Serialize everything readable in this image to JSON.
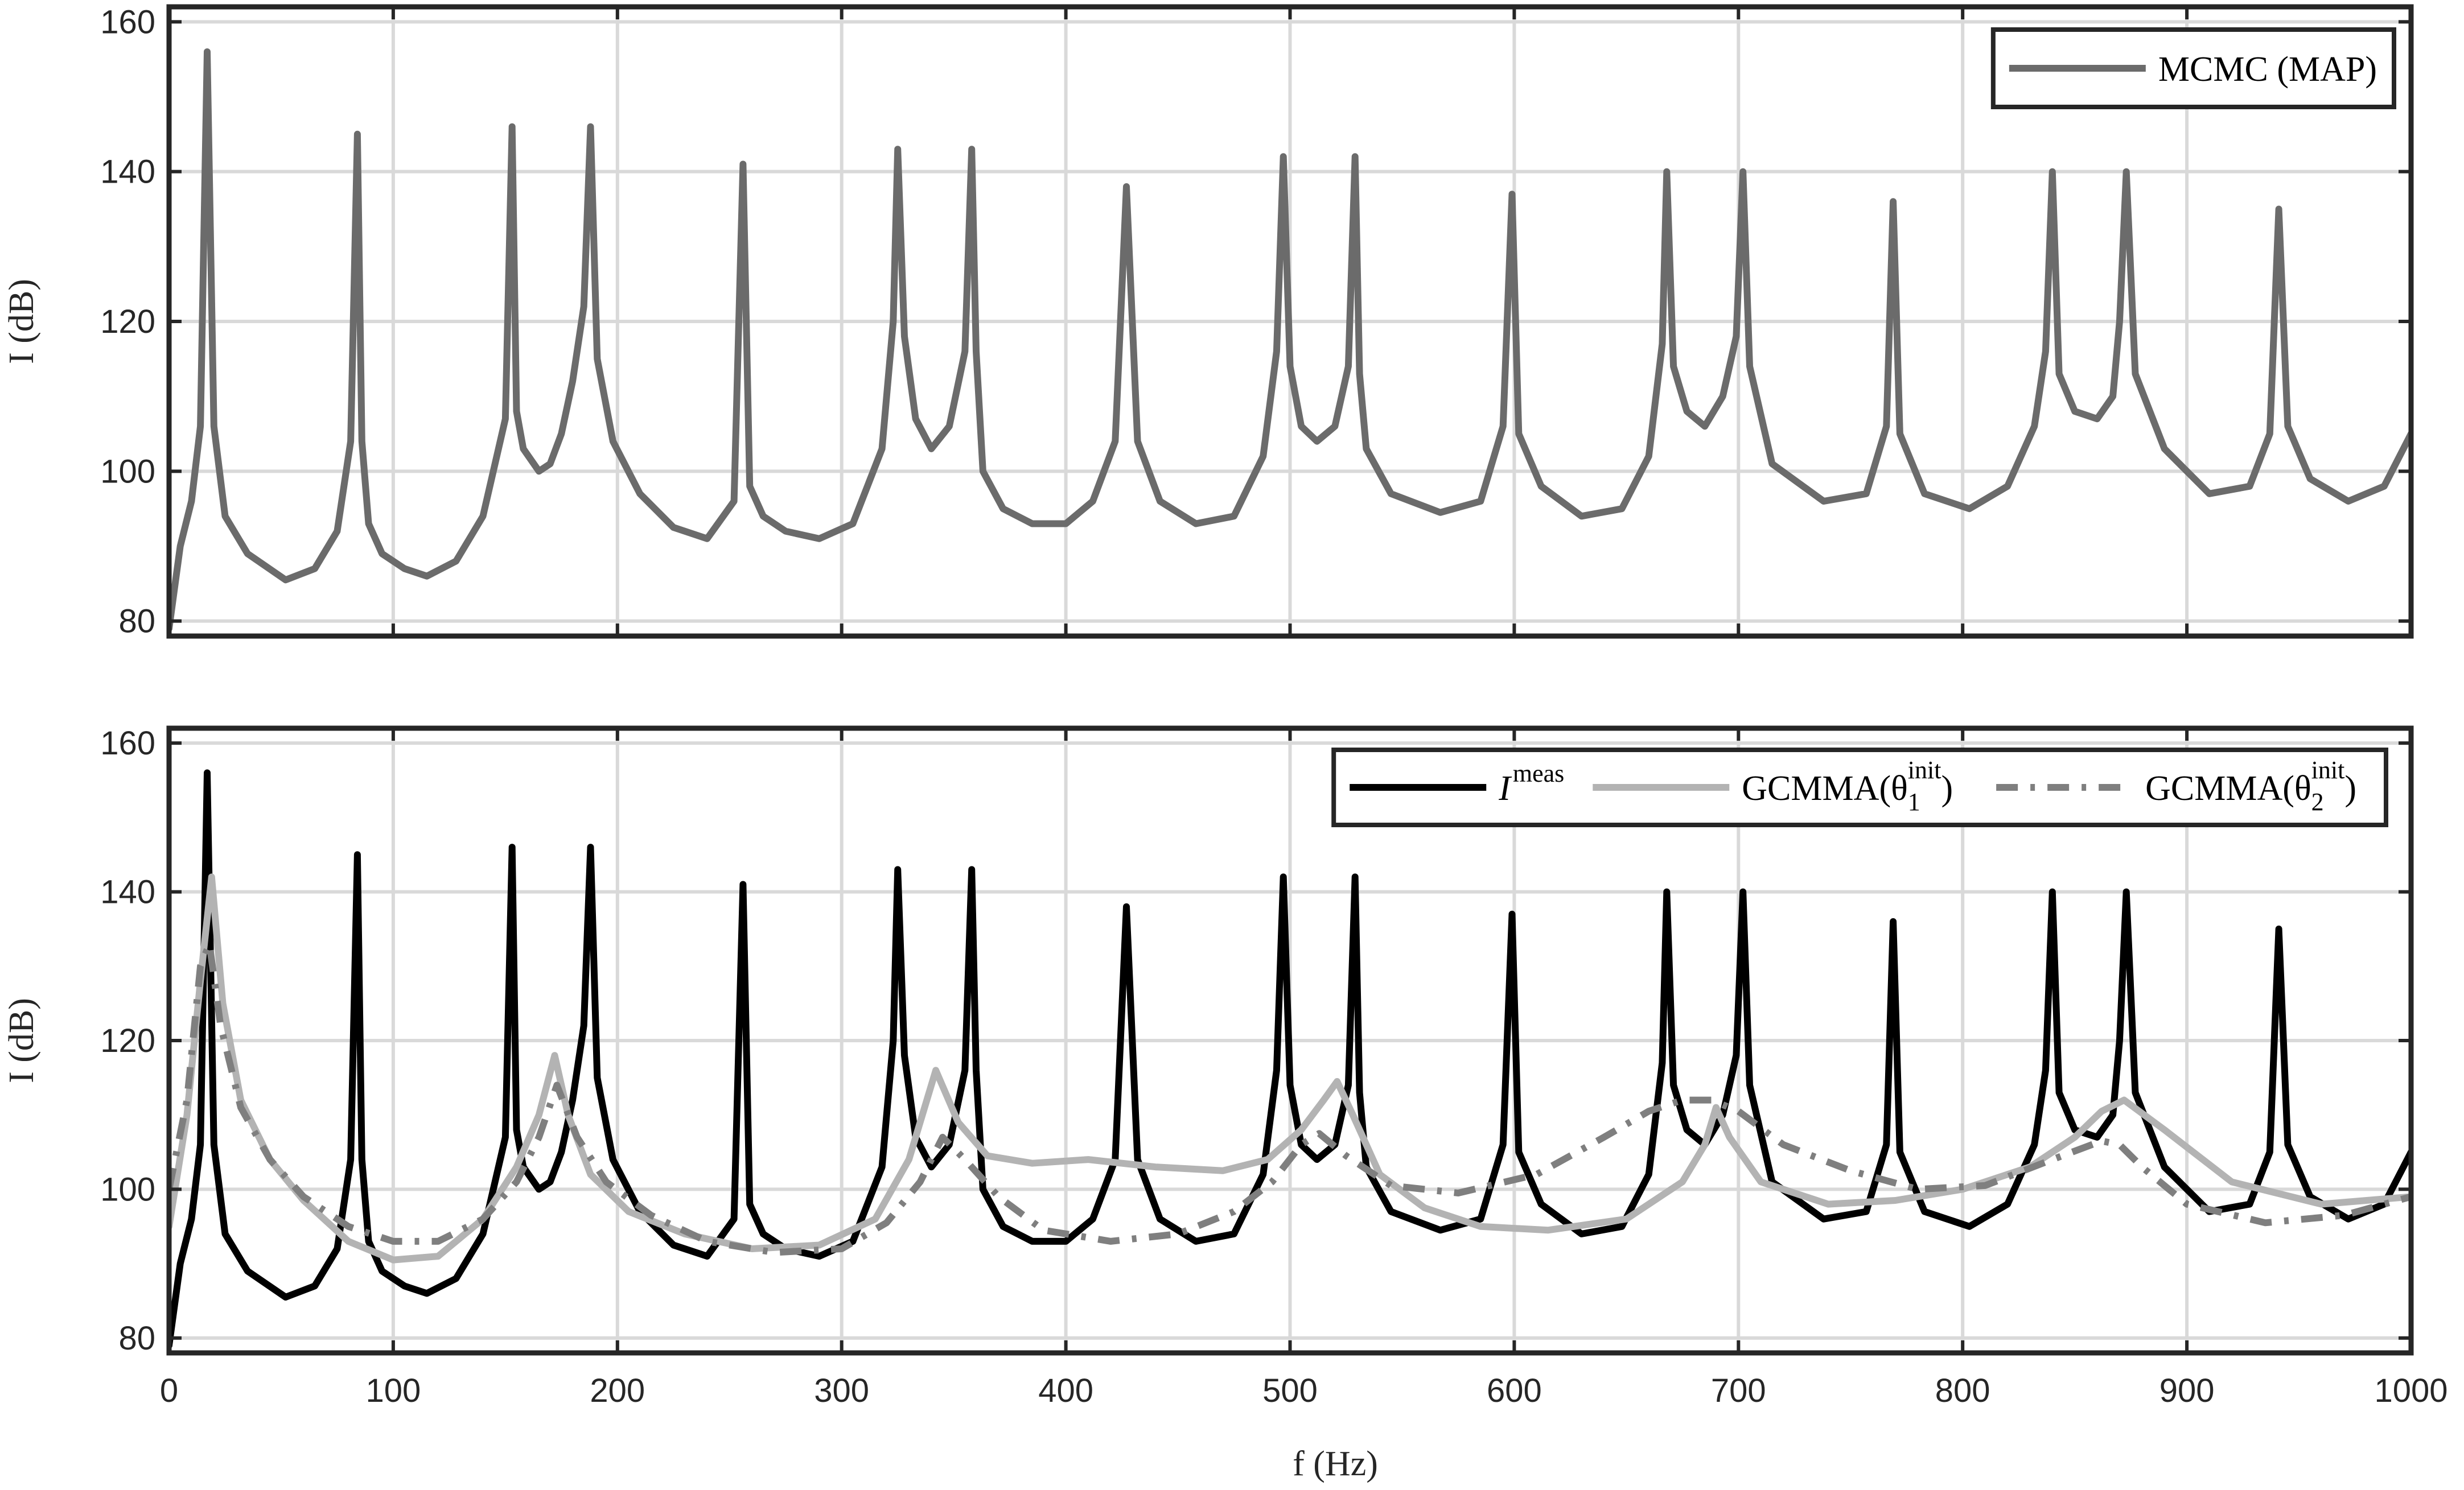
{
  "chart_data": [
    {
      "type": "line",
      "xlabel": "f (Hz)",
      "ylabel": "I (dB)",
      "xlim": [
        0,
        1000
      ],
      "ylim": [
        78,
        162
      ],
      "xticks": [
        0,
        100,
        200,
        300,
        400,
        500,
        600,
        700,
        800,
        900,
        1000
      ],
      "yticks": [
        80,
        100,
        120,
        140,
        160
      ],
      "grid": true,
      "legend_position": "top-right",
      "series": [
        {
          "name": "MCMC (MAP)",
          "legend_label": {
            "base": "MCMC (MAP)"
          },
          "color": "#6b6b6b",
          "dash": "solid",
          "x": [
            0,
            5,
            10,
            14,
            17,
            20,
            25,
            35,
            52,
            65,
            75,
            81,
            84,
            86,
            89,
            95,
            105,
            115,
            128,
            140,
            150,
            153,
            155,
            158,
            165,
            170,
            175,
            180,
            185,
            188,
            191,
            198,
            210,
            225,
            240,
            252,
            256,
            259,
            265,
            275,
            290,
            305,
            318,
            323,
            325,
            328,
            333,
            340,
            348,
            355,
            358,
            360,
            363,
            372,
            385,
            400,
            412,
            422,
            427,
            432,
            442,
            458,
            475,
            488,
            494,
            497,
            500,
            505,
            512,
            520,
            526,
            529,
            531,
            534,
            545,
            567,
            585,
            595,
            599,
            602,
            612,
            630,
            648,
            660,
            666,
            668,
            671,
            677,
            685,
            693,
            699,
            702,
            705,
            715,
            738,
            757,
            766,
            769,
            772,
            783,
            803,
            820,
            832,
            837,
            840,
            843,
            850,
            860,
            867,
            870,
            873,
            877,
            890,
            910,
            928,
            937,
            941,
            945,
            955,
            972,
            988,
            1000
          ],
          "values": [
            79,
            90,
            96,
            106,
            156,
            106,
            94,
            89,
            85.5,
            87,
            92,
            104,
            145,
            104,
            93,
            89,
            87,
            86,
            88,
            94,
            107,
            146,
            108,
            103,
            100,
            101,
            105,
            112,
            122,
            146,
            115,
            104,
            97,
            92.5,
            91,
            96,
            141,
            98,
            94,
            92,
            91,
            93,
            103,
            120,
            143,
            118,
            107,
            103,
            106,
            116,
            143,
            116,
            100,
            95,
            93,
            93,
            96,
            104,
            138,
            104,
            96,
            93,
            94,
            102,
            116,
            142,
            114,
            106,
            104,
            106,
            114,
            142,
            113,
            103,
            97,
            94.5,
            96,
            106,
            137,
            105,
            98,
            94,
            95,
            102,
            117,
            140,
            114,
            108,
            106,
            110,
            118,
            140,
            114,
            101,
            96,
            97,
            106,
            136,
            105,
            97,
            95,
            98,
            106,
            116,
            140,
            113,
            108,
            107,
            110,
            120,
            140,
            113,
            103,
            97,
            98,
            105,
            135,
            106,
            99,
            96,
            98,
            105
          ]
        }
      ]
    },
    {
      "type": "line",
      "xlabel": "f (Hz)",
      "ylabel": "I (dB)",
      "xlim": [
        0,
        1000
      ],
      "ylim": [
        78,
        162
      ],
      "xticks": [
        0,
        100,
        200,
        300,
        400,
        500,
        600,
        700,
        800,
        900,
        1000
      ],
      "yticks": [
        80,
        100,
        120,
        140,
        160
      ],
      "grid": true,
      "legend_position": "top-right",
      "series": [
        {
          "name": "I^meas",
          "legend_label": {
            "base": "I",
            "sup": "meas"
          },
          "color": "#000000",
          "dash": "solid",
          "x": [
            0,
            5,
            10,
            14,
            17,
            20,
            25,
            35,
            52,
            65,
            75,
            81,
            84,
            86,
            89,
            95,
            105,
            115,
            128,
            140,
            150,
            153,
            155,
            158,
            165,
            170,
            175,
            180,
            185,
            188,
            191,
            198,
            210,
            225,
            240,
            252,
            256,
            259,
            265,
            275,
            290,
            305,
            318,
            323,
            325,
            328,
            333,
            340,
            348,
            355,
            358,
            360,
            363,
            372,
            385,
            400,
            412,
            422,
            427,
            432,
            442,
            458,
            475,
            488,
            494,
            497,
            500,
            505,
            512,
            520,
            526,
            529,
            531,
            534,
            545,
            567,
            585,
            595,
            599,
            602,
            612,
            630,
            648,
            660,
            666,
            668,
            671,
            677,
            685,
            693,
            699,
            702,
            705,
            715,
            738,
            757,
            766,
            769,
            772,
            783,
            803,
            820,
            832,
            837,
            840,
            843,
            850,
            860,
            867,
            870,
            873,
            877,
            890,
            910,
            928,
            937,
            941,
            945,
            955,
            972,
            988,
            1000
          ],
          "values": [
            79,
            90,
            96,
            106,
            156,
            106,
            94,
            89,
            85.5,
            87,
            92,
            104,
            145,
            104,
            93,
            89,
            87,
            86,
            88,
            94,
            107,
            146,
            108,
            103,
            100,
            101,
            105,
            112,
            122,
            146,
            115,
            104,
            97,
            92.5,
            91,
            96,
            141,
            98,
            94,
            92,
            91,
            93,
            103,
            120,
            143,
            118,
            107,
            103,
            106,
            116,
            143,
            116,
            100,
            95,
            93,
            93,
            96,
            104,
            138,
            104,
            96,
            93,
            94,
            102,
            116,
            142,
            114,
            106,
            104,
            106,
            114,
            142,
            113,
            103,
            97,
            94.5,
            96,
            106,
            137,
            105,
            98,
            94,
            95,
            102,
            117,
            140,
            114,
            108,
            106,
            110,
            118,
            140,
            114,
            101,
            96,
            97,
            106,
            136,
            105,
            97,
            95,
            98,
            106,
            116,
            140,
            113,
            108,
            107,
            110,
            120,
            140,
            113,
            103,
            97,
            98,
            105,
            135,
            106,
            99,
            96,
            98,
            105
          ]
        },
        {
          "name": "GCMMA(θ1^init)",
          "legend_label": {
            "base": "GCMMA(θ",
            "sub": "1",
            "sup": "init",
            "tail": ")"
          },
          "color": "#b3b3b3",
          "dash": "solid",
          "x": [
            0,
            8,
            14,
            19,
            24,
            32,
            45,
            60,
            80,
            100,
            120,
            140,
            155,
            165,
            172,
            178,
            188,
            205,
            230,
            260,
            290,
            315,
            330,
            342,
            352,
            365,
            385,
            410,
            440,
            470,
            490,
            505,
            515,
            521,
            528,
            540,
            560,
            585,
            615,
            650,
            675,
            685,
            690,
            696,
            710,
            740,
            770,
            800,
            830,
            850,
            862,
            872,
            890,
            920,
            960,
            1000
          ],
          "values": [
            95,
            110,
            128,
            142,
            125,
            112,
            104,
            98.5,
            93,
            90.5,
            91,
            96,
            103,
            110,
            118,
            110,
            102,
            97,
            94,
            92,
            92.5,
            96,
            104,
            116,
            109,
            104.5,
            103.5,
            104,
            103,
            102.5,
            104,
            108,
            112,
            114.5,
            110,
            102,
            97.5,
            95,
            94.5,
            96,
            101,
            106,
            111,
            107,
            101,
            98,
            98.5,
            100,
            103,
            107,
            110.5,
            112,
            108,
            101,
            98,
            99
          ]
        },
        {
          "name": "GCMMA(θ2^init)",
          "legend_label": {
            "base": "GCMMA(θ",
            "sub": "2",
            "sup": "init",
            "tail": ")"
          },
          "color": "#7f7f7f",
          "dash": "dashdot",
          "x": [
            0,
            8,
            14,
            18,
            23,
            32,
            45,
            60,
            80,
            100,
            120,
            140,
            155,
            165,
            173,
            182,
            195,
            215,
            240,
            270,
            300,
            320,
            335,
            345,
            355,
            370,
            390,
            420,
            450,
            475,
            492,
            505,
            513,
            525,
            545,
            575,
            610,
            640,
            660,
            675,
            688,
            700,
            720,
            750,
            780,
            810,
            840,
            862,
            870,
            880,
            900,
            935,
            970,
            1000
          ],
          "values": [
            100,
            112,
            130,
            133,
            122,
            111,
            104,
            99,
            95,
            93,
            93,
            96,
            101,
            107,
            114,
            107,
            101,
            96.5,
            93,
            91.5,
            92,
            95.5,
            101,
            107,
            104,
            99,
            94.5,
            93,
            94,
            97,
            101,
            106,
            107.5,
            104.5,
            100.5,
            99.5,
            102,
            107,
            110.5,
            112,
            112,
            110.5,
            106,
            102.5,
            100,
            100.5,
            104,
            106.5,
            106,
            103,
            98,
            95.5,
            96.5,
            99
          ]
        }
      ]
    }
  ]
}
